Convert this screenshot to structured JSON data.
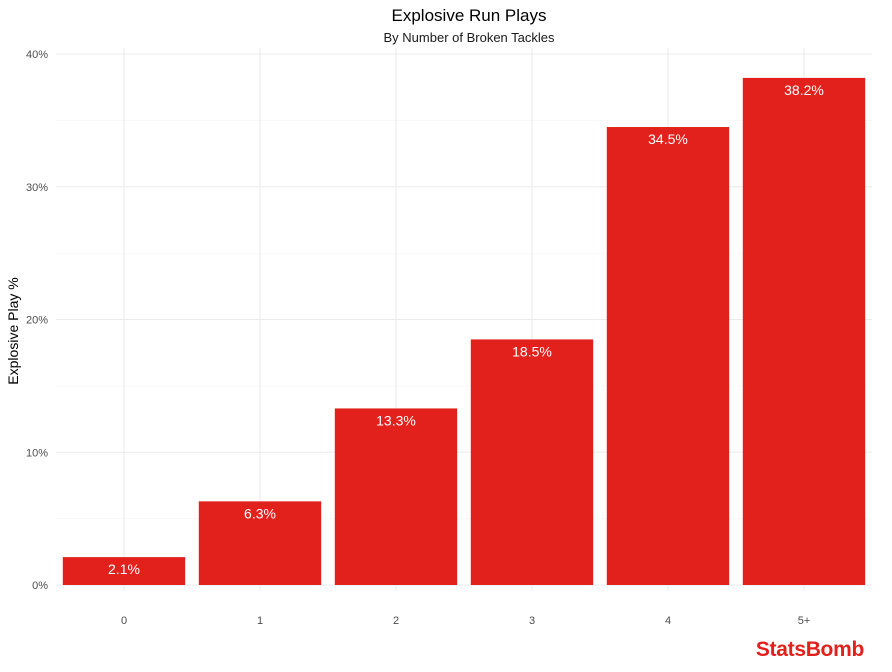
{
  "chart_data": {
    "type": "bar",
    "title": "Explosive Run Plays",
    "subtitle": "By Number of Broken Tackles",
    "xlabel": "",
    "ylabel": "Explosive Play %",
    "categories": [
      "0",
      "1",
      "2",
      "3",
      "4",
      "5+"
    ],
    "values": [
      2.1,
      6.3,
      13.3,
      18.5,
      34.5,
      38.2
    ],
    "data_labels": [
      "2.1%",
      "6.3%",
      "13.3%",
      "18.5%",
      "34.5%",
      "38.2%"
    ],
    "ylim": [
      0,
      40
    ],
    "y_ticks": [
      0,
      10,
      20,
      30,
      40
    ],
    "y_tick_labels": [
      "0%",
      "10%",
      "20%",
      "30%",
      "40%"
    ],
    "grid": true,
    "legend": "none",
    "bar_color": "#e2211c"
  },
  "branding": {
    "logo_text": "StatsBomb",
    "logo_color": "#e2211c"
  }
}
